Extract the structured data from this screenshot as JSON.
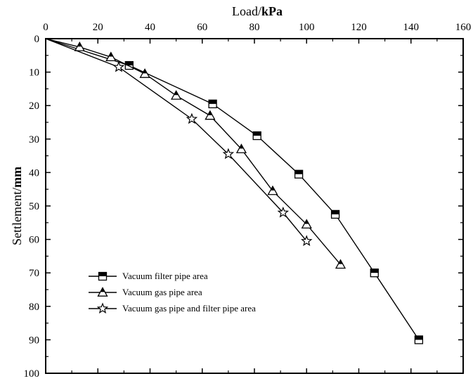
{
  "chart_data": {
    "type": "line",
    "title": "",
    "xlabel": {
      "prefix": "Load/",
      "unit": "kPa"
    },
    "ylabel": {
      "prefix": "Settlement/",
      "unit": "mm"
    },
    "xlim": [
      0,
      160
    ],
    "ylim": [
      0,
      100
    ],
    "x_ticks": [
      "0",
      "20",
      "40",
      "60",
      "80",
      "100",
      "120",
      "140",
      "160"
    ],
    "y_ticks": [
      "0",
      "10",
      "20",
      "30",
      "40",
      "50",
      "60",
      "70",
      "80",
      "90",
      "100"
    ],
    "x_axis_position": "top",
    "y_inverted": true,
    "grid": false,
    "legend_position": "bottom-left",
    "series": [
      {
        "name": "Vacuum filter pipe area",
        "marker": "half-filled-square",
        "points": [
          [
            0,
            0
          ],
          [
            32,
            8
          ],
          [
            64,
            19.5
          ],
          [
            81,
            29
          ],
          [
            97,
            40.5
          ],
          [
            111,
            52.5
          ],
          [
            126,
            70
          ],
          [
            143,
            90
          ]
        ]
      },
      {
        "name": "Vacuum gas pipe area",
        "marker": "half-filled-triangle",
        "points": [
          [
            0,
            0
          ],
          [
            13,
            2.5
          ],
          [
            25,
            5.5
          ],
          [
            38,
            10.5
          ],
          [
            50,
            17
          ],
          [
            63,
            23
          ],
          [
            75,
            33
          ],
          [
            87,
            45.5
          ],
          [
            100,
            55.5
          ],
          [
            113,
            67.5
          ]
        ]
      },
      {
        "name": "Vacuum gas pipe and filter pipe area",
        "marker": "star",
        "points": [
          [
            0,
            0
          ],
          [
            28,
            8.5
          ],
          [
            56,
            24
          ],
          [
            70,
            34.5
          ],
          [
            91,
            52
          ],
          [
            100,
            60.5
          ]
        ]
      }
    ]
  }
}
